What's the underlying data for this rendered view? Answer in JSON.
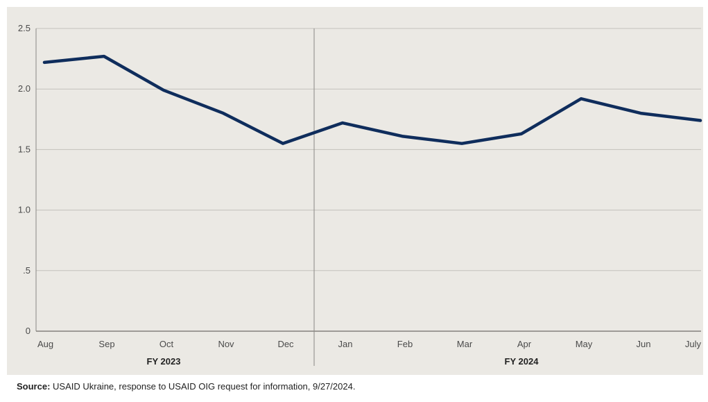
{
  "chart_data": {
    "type": "line",
    "categories": [
      "Aug",
      "Sep",
      "Oct",
      "Nov",
      "Dec",
      "Jan",
      "Feb",
      "Mar",
      "Apr",
      "May",
      "Jun",
      "July"
    ],
    "series": [
      {
        "values": [
          2.22,
          2.27,
          1.99,
          1.8,
          1.55,
          1.72,
          1.61,
          1.55,
          1.63,
          1.92,
          1.8,
          1.74
        ]
      }
    ],
    "ylim": [
      0,
      2.5
    ],
    "yticks": [
      0,
      0.5,
      1.0,
      1.5,
      2.0,
      2.5
    ],
    "ytick_labels": [
      "0",
      ".5",
      "1.0",
      "1.5",
      "2.0",
      "2.5"
    ],
    "fiscal_years": [
      {
        "label": "FY 2023",
        "categories": [
          "Aug",
          "Sep",
          "Oct",
          "Nov",
          "Dec"
        ]
      },
      {
        "label": "FY 2024",
        "categories": [
          "Jan",
          "Feb",
          "Mar",
          "Apr",
          "May",
          "Jun",
          "July"
        ]
      }
    ],
    "grid": true,
    "line_color": "#0f2d5c",
    "title": "",
    "xlabel": "",
    "ylabel": ""
  },
  "source": {
    "label": "Source:",
    "text": " USAID Ukraine, response to USAID OIG request for information, 9/27/2024."
  }
}
